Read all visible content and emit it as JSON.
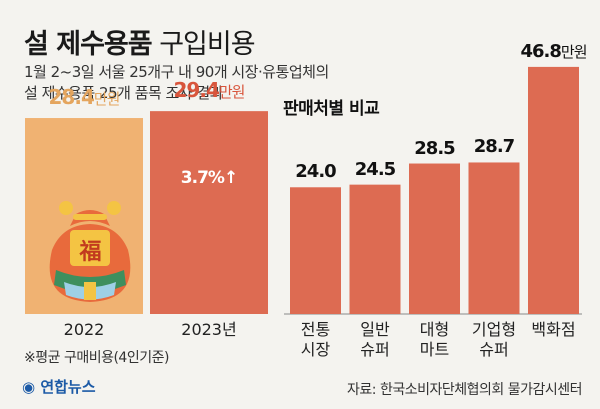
{
  "title_bold": "설 제수용품",
  "title_light": "구입비용",
  "subtitle_lines": [
    "1월 2~3일 서울 25개구 내 90개 시장·유통업체의",
    "설 제수용품 25개 품목 조사 결과"
  ],
  "footnote": "※평균 구매비용(4인기준)",
  "source": "자료: 한국소비자단체협의회 물가감시센터",
  "logo": "연합뉴스",
  "left_chart": {
    "unit": "만원",
    "change_label": "3.7%↑",
    "bag_char": "福"
  },
  "right_chart": {
    "title": "판매처별 비교"
  },
  "chart_data": [
    {
      "type": "bar",
      "categories": [
        "2022",
        "2023년"
      ],
      "values": [
        28.4,
        29.4
      ],
      "unit": "만원",
      "annotation": "3.7%↑",
      "colors": [
        "#f0b272",
        "#dd6b52"
      ]
    },
    {
      "type": "bar",
      "title": "판매처별 비교",
      "categories": [
        "전통 시장",
        "일반 슈퍼",
        "대형 마트",
        "기업형 슈퍼",
        "백화점"
      ],
      "category_lines": [
        [
          "전통",
          "시장"
        ],
        [
          "일반",
          "슈퍼"
        ],
        [
          "대형",
          "마트"
        ],
        [
          "기업형",
          "슈퍼"
        ],
        [
          "백화점"
        ]
      ],
      "values": [
        24.0,
        24.5,
        28.5,
        28.7,
        46.8
      ],
      "value_labels": [
        "24.0",
        "24.5",
        "28.5",
        "28.7",
        "46.8만원"
      ],
      "color": "#dd6b52"
    }
  ],
  "colors": {
    "accent": "#dd6b52",
    "light_bar": "#f0b272",
    "bag": "#e86a3c",
    "bag_band": "#3e8f5e"
  }
}
